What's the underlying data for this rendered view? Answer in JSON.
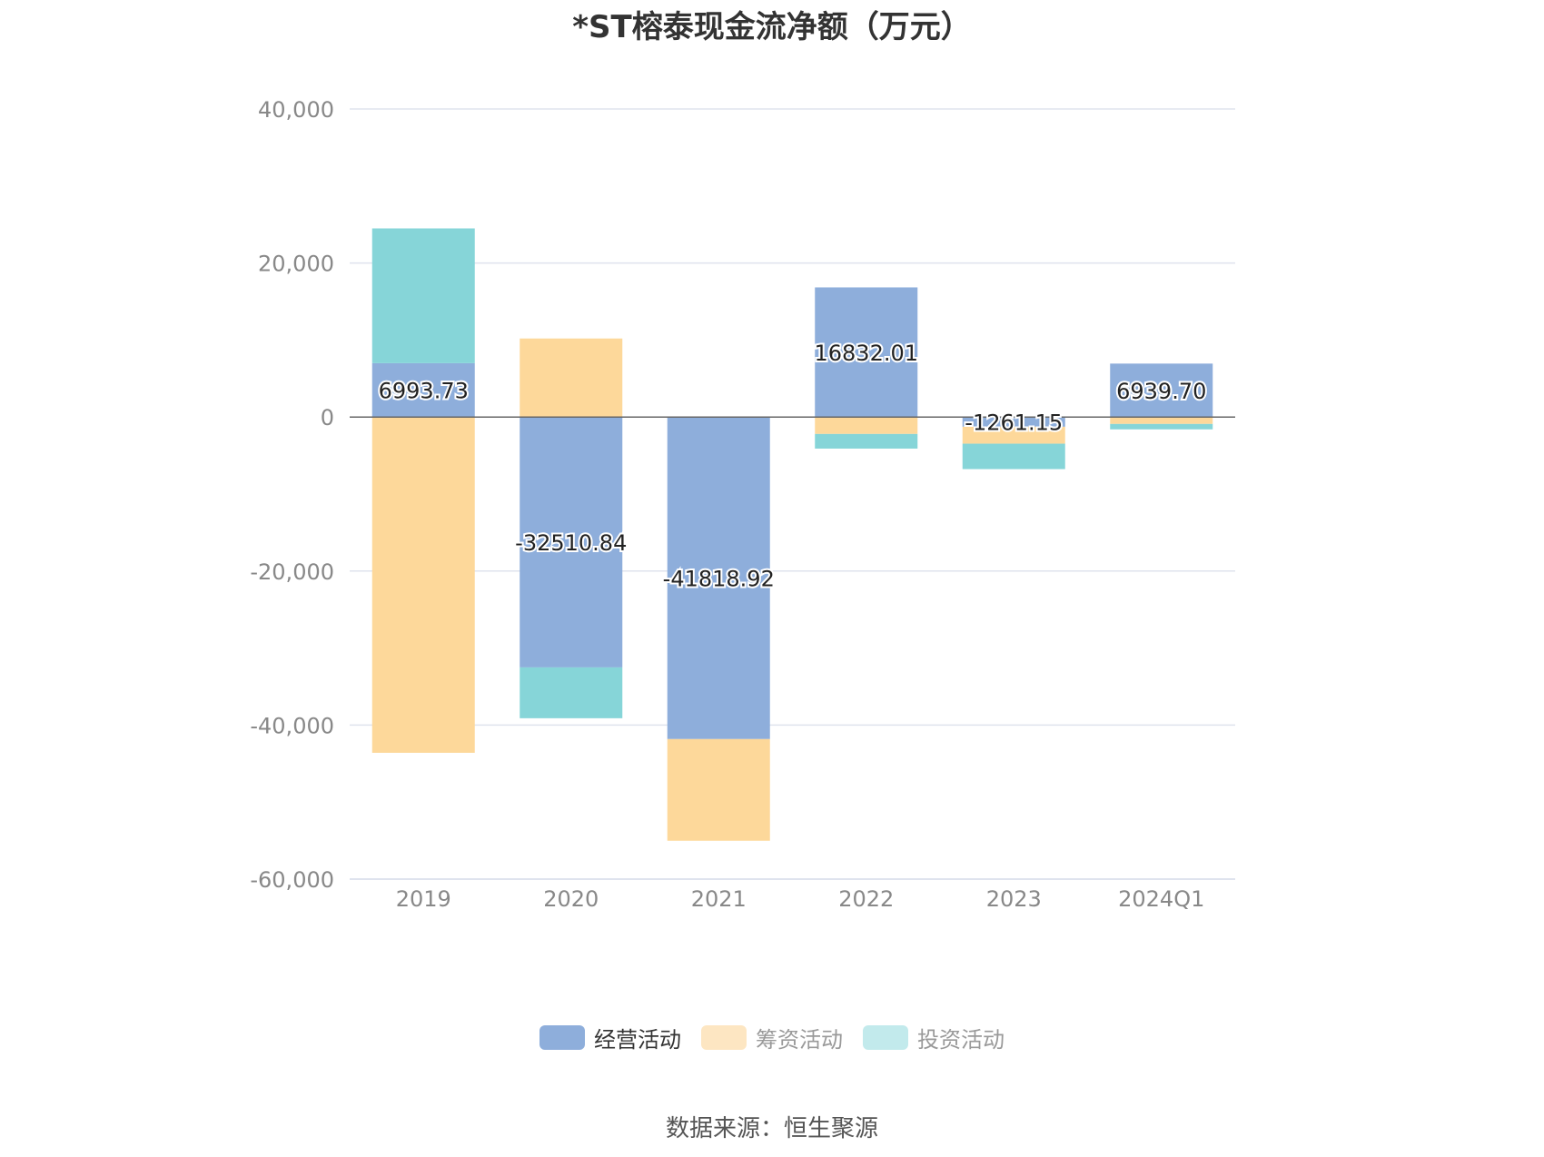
{
  "chart_data": {
    "type": "bar",
    "stacked": true,
    "title": "*ST榕泰现金流净额（万元）",
    "categories": [
      "2019",
      "2020",
      "2021",
      "2022",
      "2023",
      "2024Q1"
    ],
    "series": [
      {
        "name": "经营活动",
        "color": "#8eaedb",
        "legend_color": "#8eaedb",
        "values": [
          6993.73,
          -32510.84,
          -41818.92,
          16832.01,
          -1261.15,
          6939.7
        ],
        "labels": [
          "6993.73",
          "-32510.84",
          "-41818.92",
          "16832.01",
          "-1261.15",
          "6939.70"
        ]
      },
      {
        "name": "筹资活动",
        "color": "#fdd89a",
        "legend_color": "#fde6c2",
        "values": [
          -43600,
          10200,
          -13200,
          -2200,
          -2200,
          -900
        ]
      },
      {
        "name": "投资活动",
        "color": "#86d5d8",
        "legend_color": "#c2eaec",
        "values": [
          17500,
          -6600,
          0,
          -1900,
          -3300,
          -700
        ]
      }
    ],
    "y_ticks": [
      "40,000",
      "20,000",
      "0",
      "-20,000",
      "-40,000",
      "-60,000"
    ],
    "ylim": [
      -60000,
      40000
    ],
    "grid": true,
    "legend_position": "bottom"
  },
  "source": "数据来源：恒生聚源"
}
